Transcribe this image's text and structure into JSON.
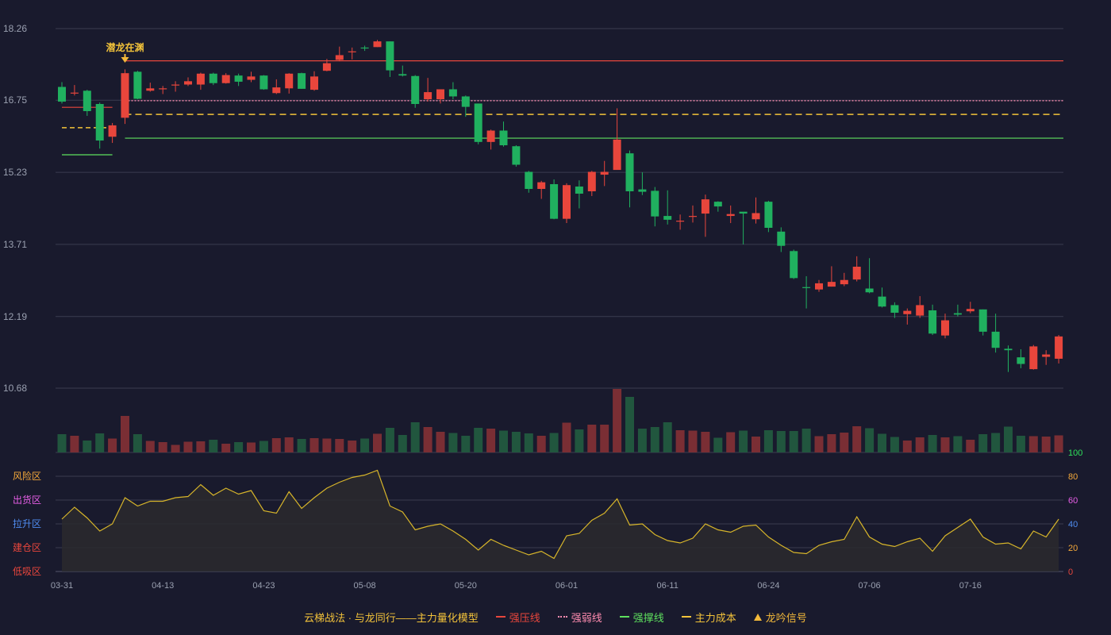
{
  "chart_data": {
    "type": "candlestick",
    "price_axis": {
      "ticks": [
        "18.26",
        "16.75",
        "15.23",
        "13.71",
        "12.19",
        "10.68"
      ],
      "ylim": [
        10.68,
        18.26
      ]
    },
    "x_tick_labels": [
      {
        "index": 0,
        "label": "03-31"
      },
      {
        "index": 8,
        "label": "04-13"
      },
      {
        "index": 16,
        "label": "04-23"
      },
      {
        "index": 24,
        "label": "05-08"
      },
      {
        "index": 32,
        "label": "05-20"
      },
      {
        "index": 40,
        "label": "06-01"
      },
      {
        "index": 48,
        "label": "06-11"
      },
      {
        "index": 56,
        "label": "06-24"
      },
      {
        "index": 64,
        "label": "07-06"
      },
      {
        "index": 72,
        "label": "07-16"
      }
    ],
    "candles": [
      [
        17.03,
        16.72,
        17.13,
        16.68
      ],
      [
        16.9,
        16.91,
        17.07,
        16.85
      ],
      [
        16.95,
        16.52,
        16.97,
        16.42
      ],
      [
        16.67,
        15.9,
        16.7,
        15.73
      ],
      [
        15.98,
        16.22,
        16.27,
        15.85
      ],
      [
        16.38,
        17.32,
        17.4,
        16.25
      ],
      [
        17.35,
        16.78,
        17.37,
        16.77
      ],
      [
        16.95,
        17.0,
        17.12,
        16.93
      ],
      [
        16.98,
        17.0,
        17.05,
        16.88
      ],
      [
        17.07,
        17.08,
        17.15,
        16.93
      ],
      [
        17.08,
        17.15,
        17.23,
        17.05
      ],
      [
        17.08,
        17.31,
        17.33,
        16.97
      ],
      [
        17.31,
        17.11,
        17.33,
        17.07
      ],
      [
        17.11,
        17.28,
        17.32,
        17.1
      ],
      [
        17.27,
        17.14,
        17.31,
        17.05
      ],
      [
        17.18,
        17.25,
        17.35,
        17.13
      ],
      [
        17.27,
        16.98,
        17.28,
        16.97
      ],
      [
        16.9,
        17.02,
        17.19,
        16.88
      ],
      [
        17.0,
        17.31,
        17.32,
        16.89
      ],
      [
        17.32,
        16.99,
        17.33,
        16.99
      ],
      [
        16.97,
        17.25,
        17.36,
        16.95
      ],
      [
        17.37,
        17.53,
        17.62,
        17.36
      ],
      [
        17.6,
        17.7,
        17.88,
        17.57
      ],
      [
        17.76,
        17.78,
        17.86,
        17.61
      ],
      [
        17.86,
        17.84,
        17.9,
        17.79
      ],
      [
        17.87,
        17.99,
        18.02,
        17.87
      ],
      [
        17.99,
        17.38,
        17.99,
        17.24
      ],
      [
        17.3,
        17.27,
        17.48,
        17.25
      ],
      [
        17.26,
        16.67,
        17.28,
        16.59
      ],
      [
        16.77,
        16.92,
        17.22,
        16.72
      ],
      [
        16.77,
        16.98,
        16.98,
        16.68
      ],
      [
        16.98,
        16.83,
        17.13,
        16.77
      ],
      [
        16.83,
        16.61,
        16.85,
        16.4
      ],
      [
        16.68,
        15.87,
        16.68,
        15.82
      ],
      [
        15.87,
        16.11,
        16.13,
        15.71
      ],
      [
        16.11,
        15.8,
        16.3,
        15.77
      ],
      [
        15.78,
        15.39,
        15.8,
        15.35
      ],
      [
        15.24,
        14.88,
        15.26,
        14.8
      ],
      [
        14.88,
        15.02,
        15.05,
        14.67
      ],
      [
        14.98,
        14.25,
        15.08,
        14.24
      ],
      [
        14.25,
        14.96,
        15.0,
        14.16
      ],
      [
        14.93,
        14.78,
        15.06,
        14.47
      ],
      [
        14.83,
        15.24,
        15.26,
        14.73
      ],
      [
        15.18,
        15.24,
        15.47,
        14.94
      ],
      [
        15.28,
        15.92,
        16.58,
        15.34
      ],
      [
        15.63,
        14.83,
        15.69,
        14.49
      ],
      [
        14.87,
        14.82,
        15.23,
        14.75
      ],
      [
        14.84,
        14.3,
        14.92,
        14.09
      ],
      [
        14.31,
        14.23,
        14.85,
        14.13
      ],
      [
        14.21,
        14.21,
        14.34,
        14.02
      ],
      [
        14.29,
        14.31,
        14.53,
        14.17
      ],
      [
        14.36,
        14.66,
        14.76,
        13.87
      ],
      [
        14.61,
        14.51,
        14.62,
        14.4
      ],
      [
        14.31,
        14.35,
        14.53,
        14.16
      ],
      [
        14.4,
        14.36,
        14.39,
        13.71
      ],
      [
        14.24,
        14.37,
        14.7,
        14.15
      ],
      [
        14.61,
        14.06,
        14.63,
        13.97
      ],
      [
        13.98,
        13.68,
        14.07,
        13.55
      ],
      [
        13.57,
        13.0,
        13.6,
        12.98
      ],
      [
        12.81,
        12.79,
        13.04,
        12.36
      ],
      [
        12.76,
        12.89,
        12.96,
        12.71
      ],
      [
        12.82,
        12.92,
        13.25,
        12.82
      ],
      [
        12.87,
        12.96,
        13.11,
        12.83
      ],
      [
        12.97,
        13.24,
        13.46,
        12.93
      ],
      [
        12.78,
        12.7,
        13.42,
        12.68
      ],
      [
        12.61,
        12.4,
        12.8,
        12.38
      ],
      [
        12.43,
        12.27,
        12.49,
        12.16
      ],
      [
        12.24,
        12.31,
        12.36,
        12.02
      ],
      [
        12.21,
        12.43,
        12.62,
        12.16
      ],
      [
        12.32,
        11.83,
        12.44,
        11.8
      ],
      [
        11.79,
        12.11,
        12.25,
        11.73
      ],
      [
        12.26,
        12.23,
        12.44,
        12.19
      ],
      [
        12.3,
        12.35,
        12.5,
        12.26
      ],
      [
        12.34,
        11.87,
        12.34,
        11.79
      ],
      [
        11.87,
        11.53,
        12.25,
        11.43
      ],
      [
        11.51,
        11.48,
        11.58,
        11.02
      ],
      [
        11.33,
        11.19,
        11.5,
        11.1
      ],
      [
        11.08,
        11.56,
        11.59,
        11.07
      ],
      [
        11.34,
        11.39,
        11.48,
        11.17
      ],
      [
        11.3,
        11.77,
        11.8,
        11.2
      ]
    ],
    "volume": [
      46,
      42,
      30,
      48,
      35,
      92,
      46,
      29,
      26,
      19,
      27,
      28,
      32,
      22,
      26,
      25,
      29,
      36,
      38,
      34,
      36,
      35,
      34,
      30,
      35,
      47,
      62,
      44,
      76,
      64,
      52,
      49,
      42,
      62,
      60,
      55,
      52,
      48,
      42,
      49,
      75,
      58,
      70,
      70,
      160,
      140,
      60,
      64,
      76,
      56,
      55,
      52,
      37,
      51,
      55,
      40,
      56,
      54,
      54,
      60,
      41,
      46,
      50,
      66,
      61,
      47,
      39,
      30,
      38,
      44,
      38,
      41,
      32,
      46,
      49,
      65,
      42,
      41,
      40,
      43
    ],
    "indicator": {
      "zone_labels": [
        "风险区",
        "出货区",
        "拉升区",
        "建仓区",
        "低吸区"
      ],
      "ticks": [
        "100",
        "80",
        "60",
        "40",
        "20",
        "0"
      ],
      "ylim": [
        0,
        100
      ],
      "values": [
        44,
        54,
        45,
        34,
        40,
        62,
        55,
        59,
        59,
        62,
        63,
        73,
        64,
        70,
        65,
        68,
        51,
        49,
        67,
        53,
        62,
        70,
        75,
        79,
        81,
        85,
        55,
        50,
        35,
        38,
        40,
        34,
        27,
        18,
        27,
        22,
        18,
        14,
        17,
        11,
        30,
        32,
        43,
        49,
        61,
        39,
        40,
        31,
        26,
        24,
        28,
        40,
        35,
        33,
        38,
        39,
        29,
        22,
        16,
        15,
        22,
        25,
        27,
        46,
        29,
        23,
        21,
        25,
        28,
        17,
        30,
        37,
        44,
        29,
        23,
        24,
        19,
        34,
        29,
        44
      ]
    },
    "lines": {
      "strong_pressure": 17.58,
      "strong_weak": 16.74,
      "main_cost": 16.45,
      "strong_support": 15.95,
      "early_pressure": 16.6,
      "early_cost": 16.17,
      "early_support": 15.6
    },
    "signal": {
      "index": 5,
      "label": "潜龙在渊"
    }
  },
  "legend": {
    "model": "云梯战法 · 与龙同行——主力量化模型",
    "items": [
      {
        "label": "强压线",
        "color": "#e8463c",
        "style": "solid"
      },
      {
        "label": "强弱线",
        "color": "#ff8cb0",
        "style": "dotted"
      },
      {
        "label": "强撑线",
        "color": "#5ee05e",
        "style": "solid"
      },
      {
        "label": "主力成本",
        "color": "#f3c33a",
        "style": "dashed"
      },
      {
        "label": "龙吟信号",
        "color": "#f3b93a",
        "style": "triangle"
      }
    ]
  },
  "colors": {
    "up": "#e8463c",
    "down": "#20b05f",
    "up_vol": "#7a2e34",
    "down_vol": "#21563e",
    "grid": "#3a3c50",
    "axis_text": "#9aa0b0",
    "indicator_line": "#d7b52a",
    "indicator_fill": "#2b2a2e",
    "zone_colors": [
      "#f3a83a",
      "#e65ee6",
      "#4f8cf0",
      "#e8463c",
      "#e8463c"
    ],
    "tick_colors": [
      "#2ee05a",
      "#f3a83a",
      "#e65ee6",
      "#4f8cf0",
      "#f3a83a",
      "#e8463c"
    ]
  }
}
